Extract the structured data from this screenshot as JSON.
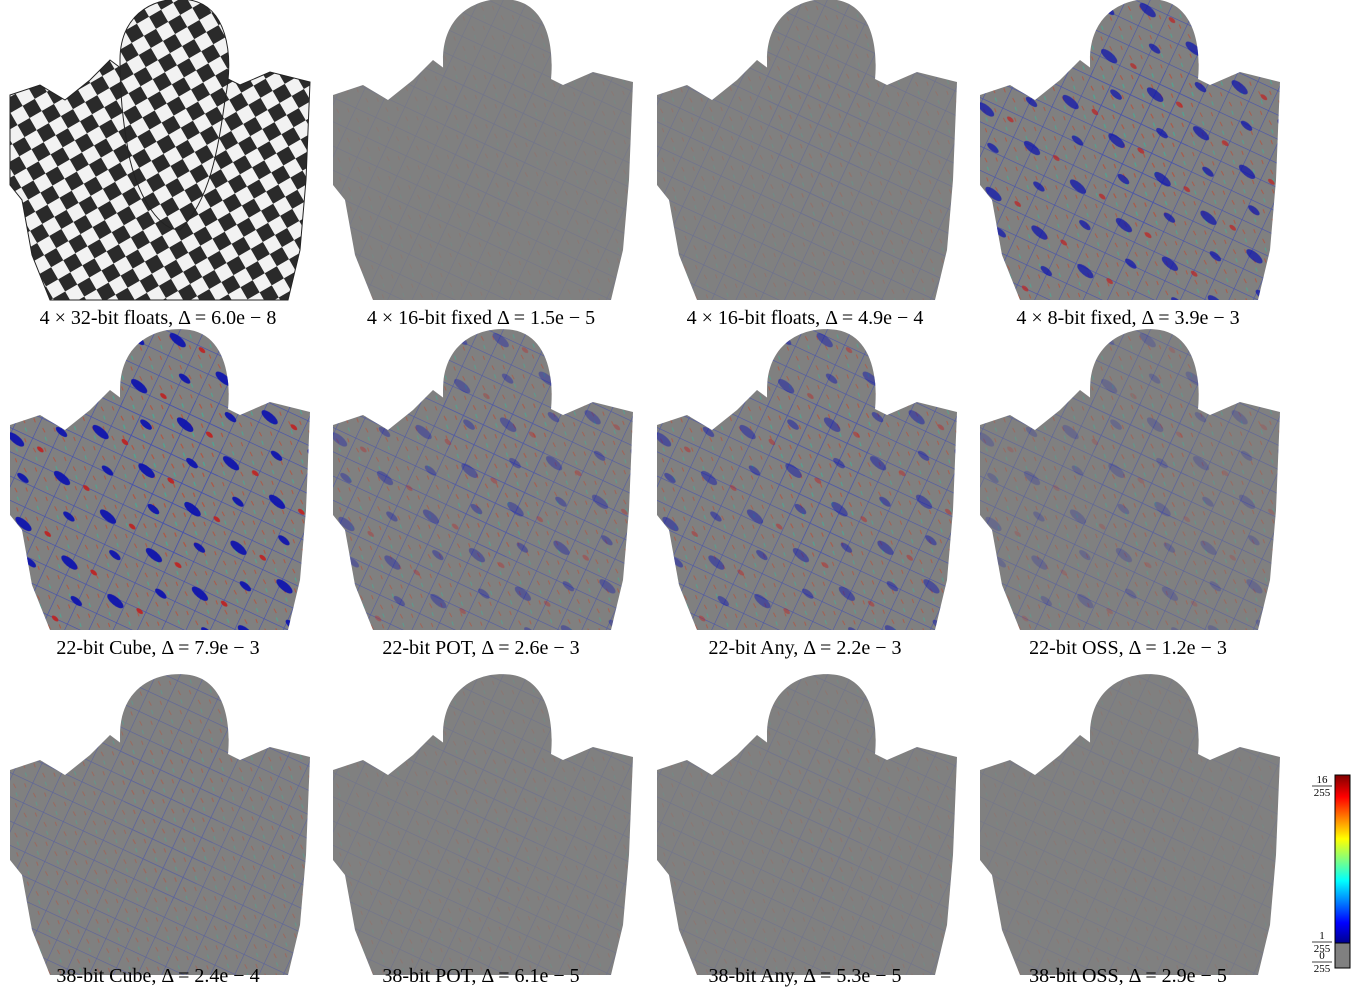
{
  "figure": {
    "panels": [
      {
        "caption": "4 × 32-bit floats, Δ = 6.0e − 8"
      },
      {
        "caption": "4 × 16-bit fixed Δ = 1.5e − 5"
      },
      {
        "caption": "4 × 16-bit floats, Δ = 4.9e − 4"
      },
      {
        "caption": "4 × 8-bit fixed, Δ = 3.9e − 3"
      },
      {
        "caption": "22-bit Cube, Δ = 7.9e − 3"
      },
      {
        "caption": "22-bit POT, Δ = 2.6e − 3"
      },
      {
        "caption": "22-bit Any, Δ = 2.2e − 3"
      },
      {
        "caption": "22-bit OSS, Δ = 1.2e − 3"
      },
      {
        "caption": "38-bit Cube, Δ = 2.4e − 4"
      },
      {
        "caption": "38-bit POT, Δ = 6.1e − 5"
      },
      {
        "caption": "38-bit Any, Δ = 5.3e − 5"
      },
      {
        "caption": "38-bit OSS, Δ = 2.9e − 5"
      }
    ],
    "colorbar": {
      "labels": [
        {
          "numerator": "16",
          "denominator": "255"
        },
        {
          "numerator": "1",
          "denominator": "255"
        },
        {
          "numerator": "0",
          "denominator": "255"
        }
      ]
    }
  }
}
